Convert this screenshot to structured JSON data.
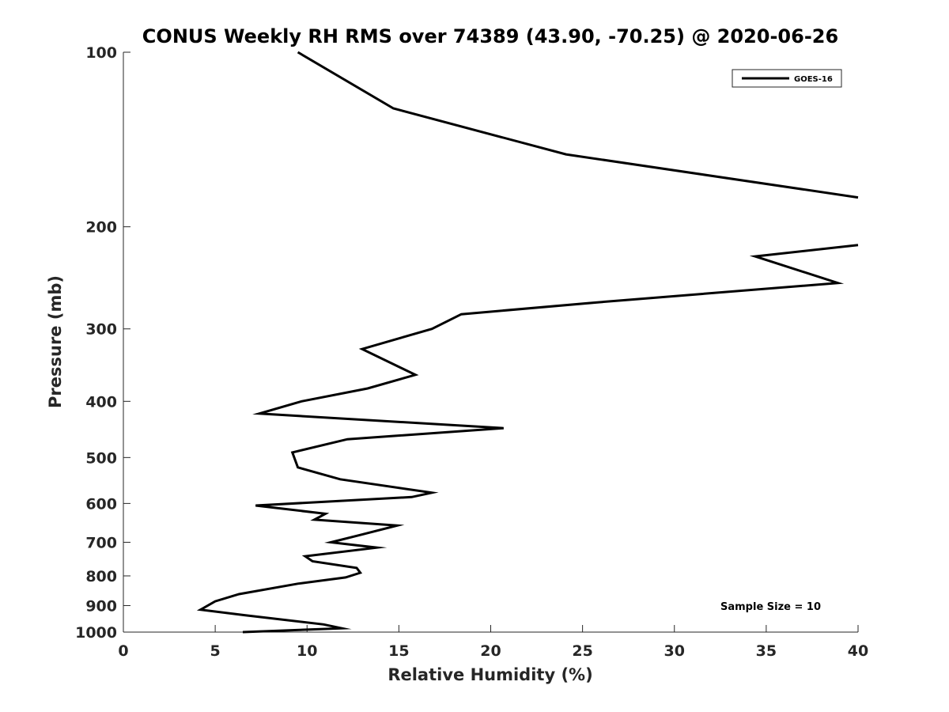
{
  "chart_data": {
    "type": "line",
    "title": "CONUS Weekly RH RMS over 74389 (43.90, -70.25) @ 2020-06-26",
    "xlabel": "Relative Humidity (%)",
    "ylabel": "Pressure (mb)",
    "xlim": [
      0,
      40
    ],
    "ylim": [
      100,
      1000
    ],
    "y_scale": "log",
    "y_reversed": true,
    "x_ticks": [
      "0",
      "5",
      "10",
      "15",
      "20",
      "25",
      "30",
      "35",
      "40"
    ],
    "y_ticks": [
      "100",
      "200",
      "300",
      "400",
      "500",
      "600",
      "700",
      "800",
      "900",
      "1000"
    ],
    "grid": false,
    "legend_position": "top-right",
    "annotation": "Sample Size = 10",
    "series": [
      {
        "name": "GOES-16",
        "color": "#000000",
        "segments": [
          {
            "points": [
              [
                9.5,
                100
              ],
              [
                14.7,
                125
              ],
              [
                24.1,
                150
              ],
              [
                40.0,
                178
              ]
            ]
          },
          {
            "points": [
              [
                40.0,
                215
              ],
              [
                34.4,
                225
              ],
              [
                38.9,
                250
              ],
              [
                25.8,
                270
              ],
              [
                18.4,
                283
              ],
              [
                16.8,
                300
              ],
              [
                13.0,
                325
              ],
              [
                15.9,
                360
              ],
              [
                13.3,
                380
              ],
              [
                9.7,
                400
              ],
              [
                7.4,
                420
              ],
              [
                20.7,
                445
              ],
              [
                12.2,
                465
              ],
              [
                9.2,
                490
              ],
              [
                9.5,
                520
              ],
              [
                11.8,
                545
              ],
              [
                16.8,
                575
              ],
              [
                15.7,
                585
              ],
              [
                7.2,
                605
              ],
              [
                11.0,
                625
              ],
              [
                10.4,
                640
              ],
              [
                14.9,
                655
              ],
              [
                12.9,
                680
              ],
              [
                11.3,
                700
              ],
              [
                13.8,
                715
              ],
              [
                9.9,
                740
              ],
              [
                10.3,
                755
              ],
              [
                12.7,
                775
              ],
              [
                12.9,
                790
              ],
              [
                12.1,
                805
              ],
              [
                9.5,
                825
              ],
              [
                6.3,
                860
              ],
              [
                5.0,
                885
              ],
              [
                4.2,
                915
              ],
              [
                6.6,
                935
              ],
              [
                10.9,
                970
              ],
              [
                11.9,
                985
              ],
              [
                6.5,
                1000
              ]
            ]
          }
        ]
      }
    ]
  }
}
